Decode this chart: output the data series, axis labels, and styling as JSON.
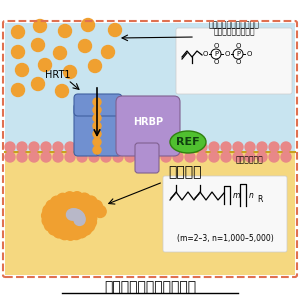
{
  "title": "天然ゴム生合成マシナリ",
  "title_fontsize": 10,
  "bg_outer": "#ffffff",
  "bg_inner_top": "#c8e4f0",
  "bg_inner_bottom": "#f5d880",
  "border_color": "#e07050",
  "membrane_color": "#e88888",
  "membrane_line_color": "#c8a020",
  "label_isopentenyl_1": "イソペンテニルニリン酸",
  "label_isopentenyl_2": "（イソプレン単位）",
  "label_hrt1": "HRT1",
  "label_hrbp": "HRBP",
  "label_ref": "REF",
  "label_rubber": "天然ゴム",
  "label_inside": "ゴム粒子内部",
  "label_formula": "(m=2–3, n=1,000–5,000)",
  "orange_ball_color": "#f0a030",
  "gray_ball_color": "#b8b8c8",
  "hrt1_color": "#7090d0",
  "hrt1_edge": "#4060a0",
  "hrbp_color": "#b090d0",
  "hrbp_edge": "#806090",
  "ref_color": "#50c030",
  "ref_edge": "#308010",
  "ref_text_color": "#104010",
  "chem_box_color": "#f8f8f8",
  "chem_box_edge": "#cccccc"
}
